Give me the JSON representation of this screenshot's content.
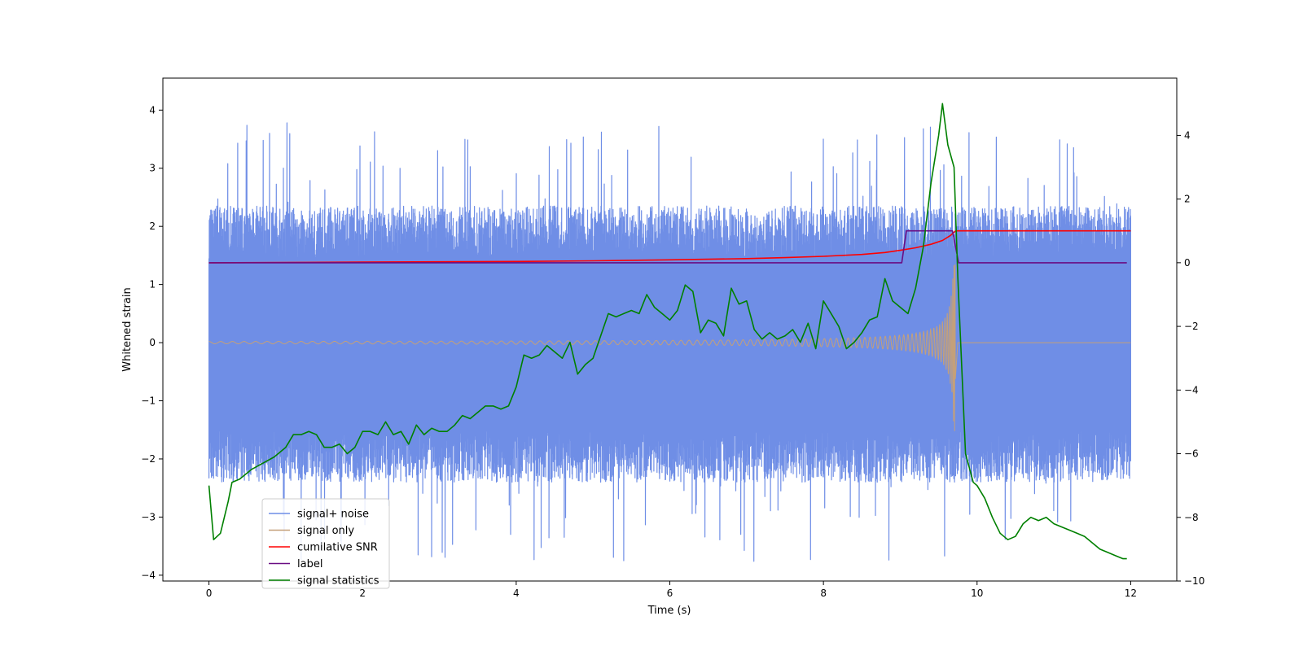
{
  "chart_data": {
    "type": "line",
    "title": "",
    "xlabel": "Time (s)",
    "ylabel": "Whitened strain",
    "ylabel_right": "",
    "xlim": [
      -0.6,
      12.6
    ],
    "ylim": [
      -4.1,
      4.55
    ],
    "ylim_right": [
      -10,
      5.8
    ],
    "xticks": [
      0,
      2,
      4,
      6,
      8,
      10,
      12
    ],
    "yticks": [
      -4,
      -3,
      -2,
      -1,
      0,
      1,
      2,
      3,
      4
    ],
    "yticks_right": [
      -10,
      -8,
      -6,
      -4,
      -2,
      0,
      2,
      4
    ],
    "grid": false,
    "legend_position": "lower-left",
    "noise_seed": 7,
    "series": [
      {
        "name": "signal+ noise",
        "axis": "left",
        "color": "#6f8ee6",
        "style": "dense-noise",
        "x_range": [
          0,
          12
        ],
        "baseline_upper": 1.45,
        "baseline_lower": -1.5,
        "spike_max": 3.78,
        "spike_min": -3.75
      },
      {
        "name": "signal only",
        "axis": "left",
        "color": "#c4a07a",
        "style": "chirp",
        "x_range": [
          0,
          9.72
        ],
        "amplitude_start": 0.02,
        "amplitude_peak": 1.6,
        "merge_time": 9.72,
        "after_merge_value": 0.0
      },
      {
        "name": "cumilative SNR",
        "axis": "right",
        "color": "#ff0000",
        "x": [
          0,
          1,
          2,
          3,
          4,
          5,
          6,
          7,
          7.5,
          8,
          8.5,
          8.8,
          9.0,
          9.2,
          9.4,
          9.55,
          9.65,
          9.72,
          9.75,
          12
        ],
        "y": [
          0,
          0.01,
          0.02,
          0.03,
          0.04,
          0.06,
          0.09,
          0.13,
          0.16,
          0.2,
          0.26,
          0.32,
          0.39,
          0.47,
          0.58,
          0.7,
          0.85,
          1.0,
          1.0,
          1.0
        ]
      },
      {
        "name": "label",
        "axis": "right",
        "color": "#6a0d83",
        "x": [
          0,
          9.02,
          9.08,
          9.68,
          9.76,
          11.95
        ],
        "y": [
          0,
          0,
          1,
          1,
          0,
          0
        ]
      },
      {
        "name": "signal statistics",
        "axis": "right",
        "color": "#008000",
        "x": [
          0,
          0.06,
          0.15,
          0.25,
          0.3,
          0.4,
          0.55,
          0.7,
          0.85,
          1.0,
          1.1,
          1.2,
          1.3,
          1.4,
          1.5,
          1.6,
          1.7,
          1.8,
          1.9,
          2.0,
          2.1,
          2.2,
          2.3,
          2.4,
          2.5,
          2.6,
          2.7,
          2.8,
          2.9,
          3.0,
          3.1,
          3.2,
          3.3,
          3.4,
          3.5,
          3.6,
          3.7,
          3.8,
          3.9,
          4.0,
          4.1,
          4.2,
          4.3,
          4.4,
          4.5,
          4.6,
          4.7,
          4.8,
          4.9,
          5.0,
          5.1,
          5.2,
          5.3,
          5.4,
          5.5,
          5.6,
          5.7,
          5.8,
          5.9,
          6.0,
          6.1,
          6.2,
          6.3,
          6.4,
          6.5,
          6.6,
          6.7,
          6.8,
          6.9,
          7.0,
          7.1,
          7.2,
          7.3,
          7.4,
          7.5,
          7.6,
          7.7,
          7.8,
          7.9,
          8.0,
          8.1,
          8.2,
          8.3,
          8.4,
          8.5,
          8.6,
          8.7,
          8.8,
          8.9,
          9.0,
          9.1,
          9.2,
          9.3,
          9.4,
          9.5,
          9.55,
          9.62,
          9.7,
          9.75,
          9.85,
          9.95,
          10.0,
          10.1,
          10.2,
          10.3,
          10.4,
          10.5,
          10.6,
          10.7,
          10.8,
          10.9,
          11.0,
          11.1,
          11.2,
          11.3,
          11.4,
          11.5,
          11.6,
          11.7,
          11.8,
          11.9,
          11.95
        ],
        "y": [
          -7.0,
          -8.7,
          -8.5,
          -7.5,
          -6.9,
          -6.8,
          -6.5,
          -6.3,
          -6.1,
          -5.8,
          -5.4,
          -5.4,
          -5.3,
          -5.4,
          -5.8,
          -5.8,
          -5.7,
          -6.0,
          -5.8,
          -5.3,
          -5.3,
          -5.4,
          -5.0,
          -5.4,
          -5.3,
          -5.7,
          -5.1,
          -5.4,
          -5.2,
          -5.3,
          -5.3,
          -5.1,
          -4.8,
          -4.9,
          -4.7,
          -4.5,
          -4.5,
          -4.6,
          -4.5,
          -3.9,
          -2.9,
          -3.0,
          -2.9,
          -2.6,
          -2.8,
          -3.0,
          -2.5,
          -3.5,
          -3.2,
          -3.0,
          -2.3,
          -1.6,
          -1.7,
          -1.6,
          -1.5,
          -1.6,
          -1.0,
          -1.4,
          -1.6,
          -1.8,
          -1.5,
          -0.7,
          -0.9,
          -2.2,
          -1.8,
          -1.9,
          -2.3,
          -0.8,
          -1.3,
          -1.2,
          -2.1,
          -2.4,
          -2.2,
          -2.4,
          -2.3,
          -2.1,
          -2.5,
          -1.9,
          -2.7,
          -1.2,
          -1.6,
          -2.0,
          -2.7,
          -2.5,
          -2.2,
          -1.8,
          -1.7,
          -0.5,
          -1.2,
          -1.4,
          -1.6,
          -0.8,
          0.5,
          2.5,
          4.0,
          5.0,
          3.7,
          3.0,
          -0.5,
          -6.0,
          -6.9,
          -7.0,
          -7.4,
          -8.0,
          -8.5,
          -8.7,
          -8.6,
          -8.2,
          -8.0,
          -8.1,
          -8.0,
          -8.2,
          -8.3,
          -8.4,
          -8.5,
          -8.6,
          -8.8,
          -9.0,
          -9.1,
          -9.2,
          -9.3,
          -9.3
        ]
      }
    ],
    "legend_entries": [
      "signal+ noise",
      "signal only",
      "cumilative SNR",
      "label",
      "signal statistics"
    ]
  }
}
